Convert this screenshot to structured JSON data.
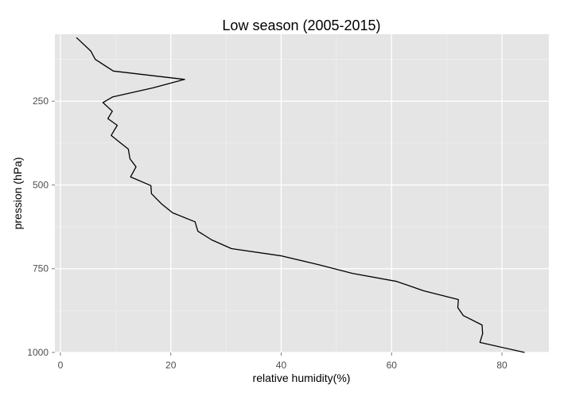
{
  "chart_data": {
    "type": "line",
    "title": "Low season (2005-2015)",
    "xlabel": "relative humidity(%)",
    "ylabel": "pression (hPa)",
    "xlim": [
      -1,
      88.5
    ],
    "ylim": [
      1000,
      50
    ],
    "y_reversed": true,
    "grid": true,
    "xticks": [
      0,
      20,
      40,
      60,
      80
    ],
    "yticks": [
      250,
      500,
      750,
      1000
    ],
    "series": [
      {
        "values": [
          {
            "x": 2.9,
            "y": 60
          },
          {
            "x": 5.5,
            "y": 100
          },
          {
            "x": 6.3,
            "y": 125
          },
          {
            "x": 9.6,
            "y": 160
          },
          {
            "x": 22.5,
            "y": 185
          },
          {
            "x": 16.8,
            "y": 210
          },
          {
            "x": 9.5,
            "y": 237
          },
          {
            "x": 7.7,
            "y": 254
          },
          {
            "x": 9.4,
            "y": 280
          },
          {
            "x": 8.6,
            "y": 302
          },
          {
            "x": 10.3,
            "y": 322
          },
          {
            "x": 9.2,
            "y": 352
          },
          {
            "x": 10.7,
            "y": 372
          },
          {
            "x": 12.3,
            "y": 393
          },
          {
            "x": 12.6,
            "y": 422
          },
          {
            "x": 13.7,
            "y": 446
          },
          {
            "x": 12.7,
            "y": 476
          },
          {
            "x": 16.4,
            "y": 502
          },
          {
            "x": 16.5,
            "y": 526
          },
          {
            "x": 18.3,
            "y": 556
          },
          {
            "x": 20.3,
            "y": 583
          },
          {
            "x": 24.4,
            "y": 610
          },
          {
            "x": 24.9,
            "y": 638
          },
          {
            "x": 27.4,
            "y": 664
          },
          {
            "x": 31.0,
            "y": 690
          },
          {
            "x": 40.1,
            "y": 712
          },
          {
            "x": 46.8,
            "y": 738
          },
          {
            "x": 52.9,
            "y": 764
          },
          {
            "x": 60.9,
            "y": 788
          },
          {
            "x": 65.8,
            "y": 816
          },
          {
            "x": 72.1,
            "y": 842
          },
          {
            "x": 72.0,
            "y": 866
          },
          {
            "x": 73.0,
            "y": 890
          },
          {
            "x": 76.4,
            "y": 918
          },
          {
            "x": 76.5,
            "y": 944
          },
          {
            "x": 76.0,
            "y": 970
          },
          {
            "x": 84.1,
            "y": 1000
          }
        ]
      }
    ]
  }
}
